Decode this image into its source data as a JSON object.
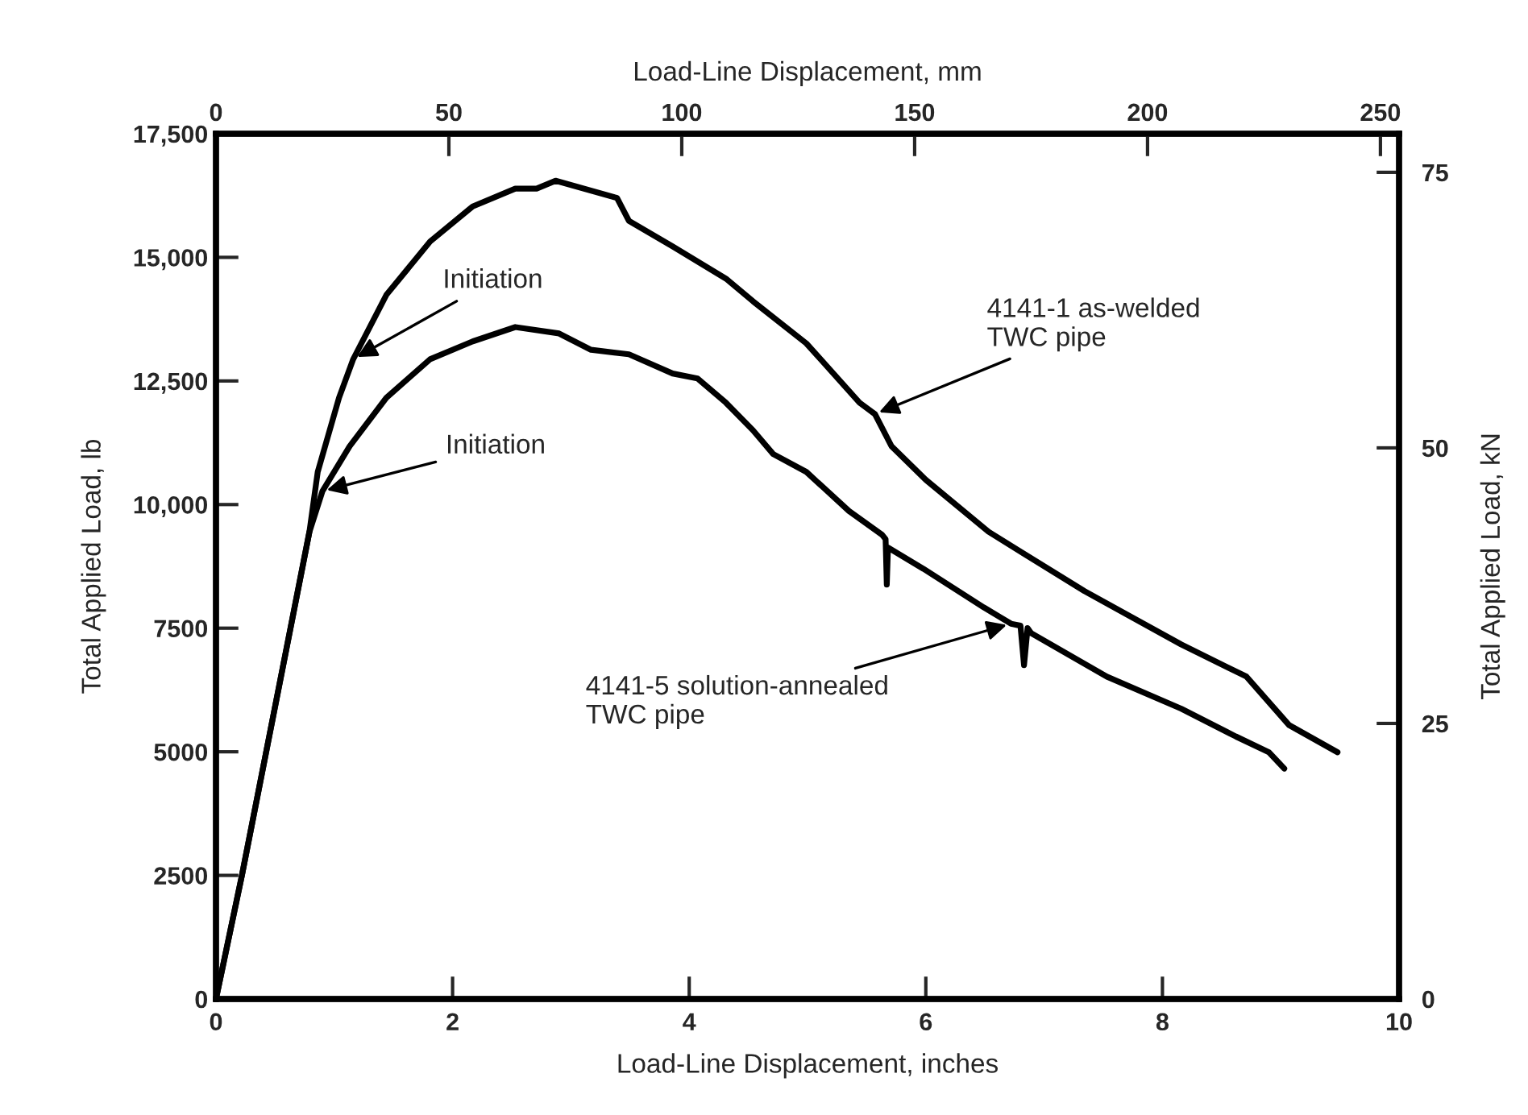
{
  "chart_data": {
    "type": "line",
    "xlabel": "Load-Line Displacement, inches",
    "ylabel": "Total Applied Load, lb",
    "y2label": "Total Applied Load, kN",
    "x2label": "Load-Line Displacement, mm",
    "xlim": [
      0,
      10
    ],
    "xticks": [
      0,
      2,
      4,
      6,
      8,
      10
    ],
    "ylim": [
      0,
      17500
    ],
    "yticks": [
      0,
      2500,
      5000,
      7500,
      {
        "value": 10000,
        "label": "10,000"
      },
      {
        "value": 12500,
        "label": "12,500"
      },
      {
        "value": 15000,
        "label": "15,000"
      },
      {
        "value": 17500,
        "label": "17,500"
      }
    ],
    "y2lim": [
      0,
      78.5
    ],
    "y2ticks": [
      0,
      25,
      50,
      75
    ],
    "x2lim": [
      0,
      254
    ],
    "x2ticks": [
      0,
      50,
      100,
      150,
      200,
      250
    ],
    "grid": false,
    "legend": false,
    "marker": "none",
    "line_style": "solid",
    "series": [
      {
        "color": "#000000",
        "x": [
          0,
          0.22,
          0.79,
          0.86,
          1.04,
          1.16,
          1.44,
          1.81,
          2.17,
          2.53,
          2.71,
          2.87,
          3.39,
          3.49,
          3.86,
          4.31,
          4.54,
          4.99,
          5.44,
          5.57,
          5.71,
          6.0,
          6.53,
          7.34,
          8.16,
          8.71,
          9.07,
          9.48
        ],
        "values": [
          0,
          2510,
          9450,
          10660,
          12160,
          12940,
          14240,
          15320,
          16030,
          16390,
          16390,
          16550,
          16200,
          15740,
          15220,
          14570,
          14110,
          13260,
          12060,
          11830,
          11180,
          10500,
          9450,
          8250,
          7170,
          6520,
          5540,
          4990
        ]
      },
      {
        "color": "#000000",
        "x": [
          0,
          0.22,
          0.79,
          0.9,
          1.13,
          1.44,
          1.81,
          2.17,
          2.53,
          2.9,
          3.17,
          3.49,
          3.86,
          4.07,
          4.31,
          4.54,
          4.71,
          4.99,
          5.35,
          5.63,
          5.66,
          5.67,
          5.68,
          5.98,
          6.49,
          6.72,
          6.8,
          6.83,
          6.86,
          6.89,
          7.53,
          8.16,
          8.62,
          8.9,
          9.03
        ],
        "values": [
          0,
          2510,
          9450,
          10270,
          11180,
          12160,
          12940,
          13300,
          13590,
          13460,
          13130,
          13040,
          12650,
          12550,
          12060,
          11500,
          11020,
          10660,
          9870,
          9390,
          9300,
          8380,
          9130,
          8700,
          7920,
          7590,
          7550,
          6750,
          7500,
          7400,
          6520,
          5870,
          5310,
          4990,
          4660
        ]
      }
    ],
    "annotations": [
      {
        "text": "Initiation",
        "x": 1.16,
        "y": 12940
      },
      {
        "text": "Initiation",
        "x": 0.9,
        "y": 10270
      },
      {
        "text": "4141-1 as-welded\nTWC pipe",
        "x": 5.57,
        "y": 11830
      },
      {
        "text": "4141-5 solution-annealed\nTWC pipe",
        "x": 6.72,
        "y": 7590
      }
    ]
  }
}
